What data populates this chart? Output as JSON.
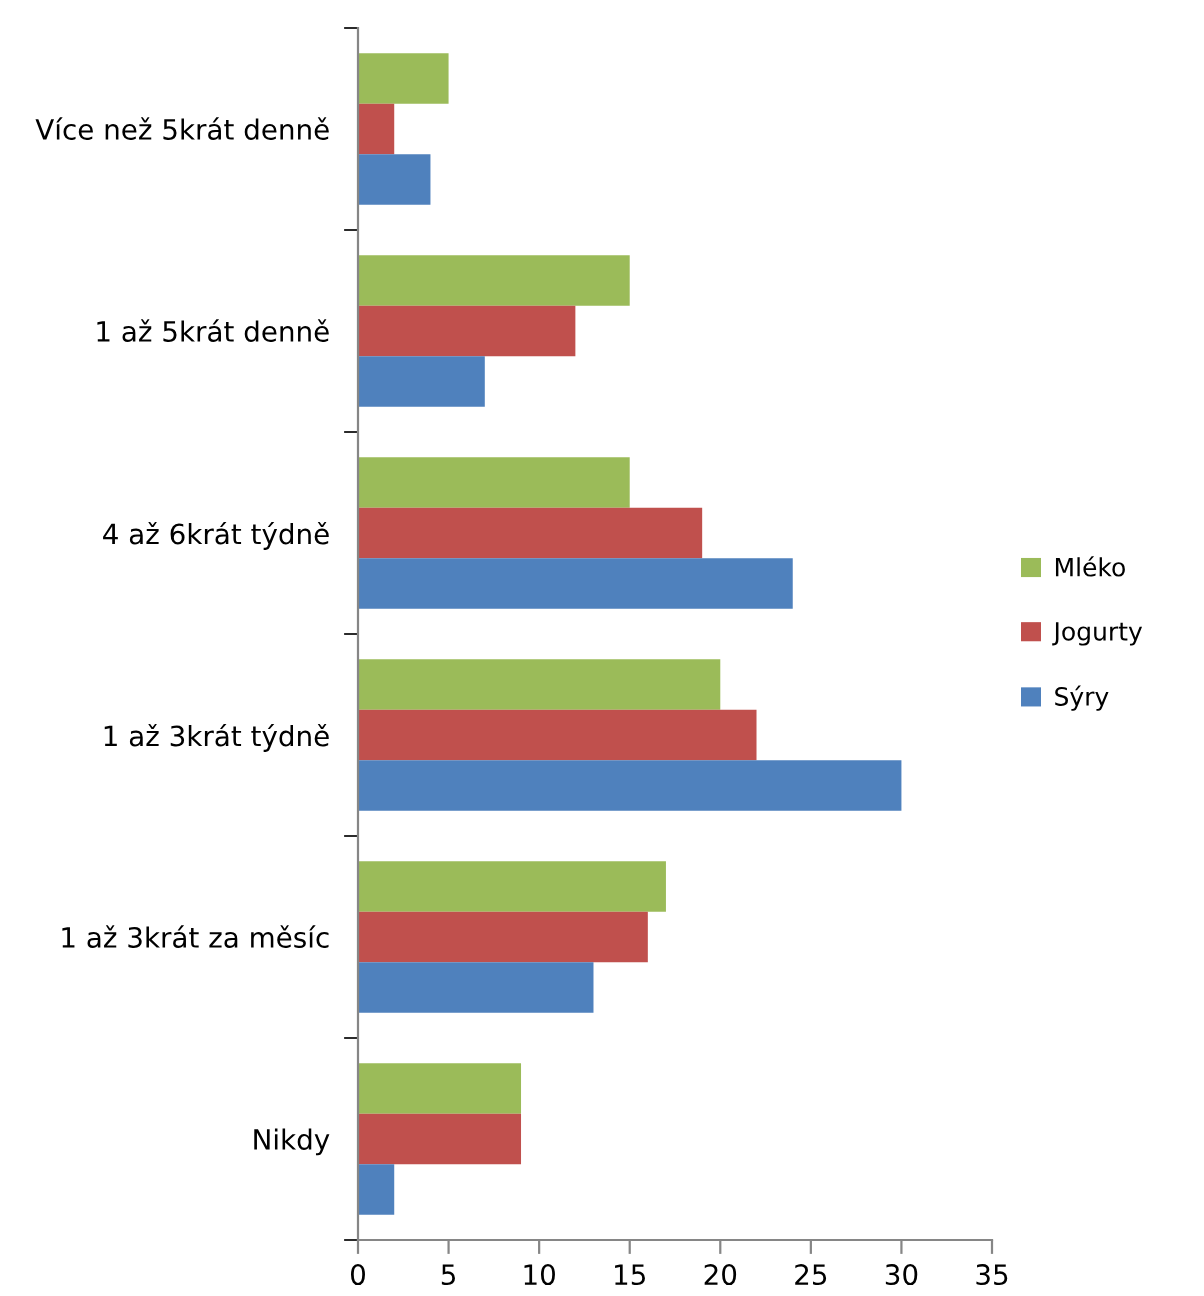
{
  "chart_data": {
    "type": "bar",
    "orientation": "horizontal",
    "categories": [
      "Více než 5krát denně",
      "1 až 5krát denně",
      "4 až 6krát týdně",
      "1 až 3krát týdně",
      "1 až 3krát za měsíc",
      "Nikdy"
    ],
    "series": [
      {
        "name": "Mléko",
        "color": "#9bbb59",
        "values": [
          5,
          15,
          15,
          20,
          17,
          9
        ]
      },
      {
        "name": "Jogurty",
        "color": "#c0504d",
        "values": [
          2,
          12,
          19,
          22,
          16,
          9
        ]
      },
      {
        "name": "Sýry",
        "color": "#4f81bd",
        "values": [
          4,
          7,
          24,
          30,
          13,
          2
        ]
      }
    ],
    "xlim": [
      0,
      35
    ],
    "xticks": [
      0,
      5,
      10,
      15,
      20,
      25,
      30,
      35
    ],
    "grid": false,
    "legend": "right"
  }
}
